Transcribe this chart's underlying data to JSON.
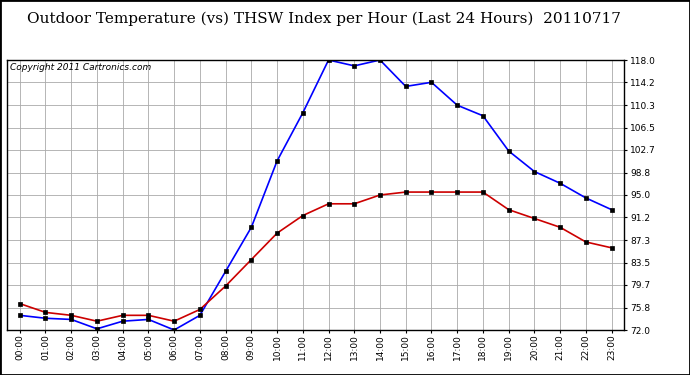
{
  "title": "Outdoor Temperature (vs) THSW Index per Hour (Last 24 Hours)  20110717",
  "copyright": "Copyright 2011 Cartronics.com",
  "hours": [
    "00:00",
    "01:00",
    "02:00",
    "03:00",
    "04:00",
    "05:00",
    "06:00",
    "07:00",
    "08:00",
    "09:00",
    "10:00",
    "11:00",
    "12:00",
    "13:00",
    "14:00",
    "15:00",
    "16:00",
    "17:00",
    "18:00",
    "19:00",
    "20:00",
    "21:00",
    "22:00",
    "23:00"
  ],
  "temp_blue": [
    74.5,
    74.0,
    73.8,
    72.2,
    73.5,
    73.8,
    72.0,
    74.5,
    82.0,
    89.5,
    100.8,
    109.0,
    118.0,
    117.0,
    118.0,
    113.5,
    114.2,
    110.3,
    108.5,
    102.5,
    99.0,
    97.0,
    94.5,
    92.5
  ],
  "temp_red": [
    76.5,
    75.0,
    74.5,
    73.5,
    74.5,
    74.5,
    73.5,
    75.5,
    79.5,
    84.0,
    88.5,
    91.5,
    93.5,
    93.5,
    95.0,
    95.5,
    95.5,
    95.5,
    95.5,
    92.5,
    91.0,
    89.5,
    87.0,
    86.0
  ],
  "ylim": [
    72.0,
    118.0
  ],
  "yticks": [
    72.0,
    75.8,
    79.7,
    83.5,
    87.3,
    91.2,
    95.0,
    98.8,
    102.7,
    106.5,
    110.3,
    114.2,
    118.0
  ],
  "blue_color": "#0000FF",
  "red_color": "#CC0000",
  "bg_color": "#FFFFFF",
  "grid_color": "#AAAAAA",
  "title_fontsize": 11,
  "copyright_fontsize": 6.5
}
